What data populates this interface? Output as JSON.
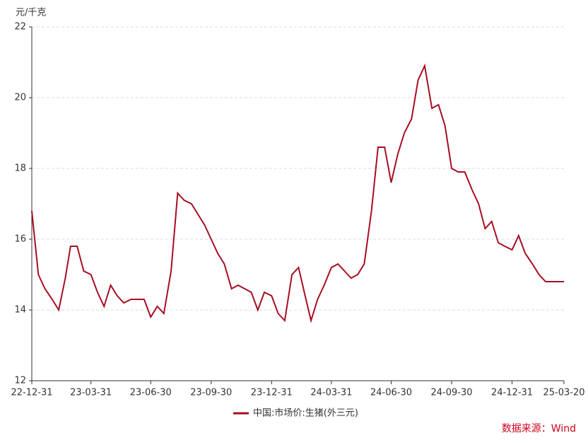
{
  "chart_data": {
    "type": "line",
    "y_unit": "元/千克",
    "source": "数据来源：Wind",
    "x": [
      "22-12-31",
      "23-01-10",
      "23-01-20",
      "23-01-31",
      "23-02-10",
      "23-02-20",
      "23-02-28",
      "23-03-10",
      "23-03-20",
      "23-03-31",
      "23-04-10",
      "23-04-20",
      "23-04-30",
      "23-05-10",
      "23-05-20",
      "23-05-31",
      "23-06-10",
      "23-06-20",
      "23-06-30",
      "23-07-10",
      "23-07-20",
      "23-07-31",
      "23-08-10",
      "23-08-20",
      "23-08-31",
      "23-09-10",
      "23-09-20",
      "23-09-30",
      "23-10-10",
      "23-10-20",
      "23-10-31",
      "23-11-10",
      "23-11-20",
      "23-11-30",
      "23-12-10",
      "23-12-20",
      "23-12-31",
      "24-01-10",
      "24-01-20",
      "24-01-31",
      "24-02-10",
      "24-02-20",
      "24-02-29",
      "24-03-10",
      "24-03-20",
      "24-03-31",
      "24-04-10",
      "24-04-20",
      "24-04-30",
      "24-05-10",
      "24-05-20",
      "24-05-31",
      "24-06-10",
      "24-06-20",
      "24-06-30",
      "24-07-10",
      "24-07-20",
      "24-07-31",
      "24-08-10",
      "24-08-20",
      "24-08-31",
      "24-09-10",
      "24-09-20",
      "24-09-30",
      "24-10-10",
      "24-10-20",
      "24-10-31",
      "24-11-10",
      "24-11-20",
      "24-11-30",
      "24-12-10",
      "24-12-20",
      "24-12-31",
      "25-01-10",
      "25-01-20",
      "25-01-31",
      "25-02-10",
      "25-02-20",
      "25-02-28",
      "25-03-10",
      "25-03-20"
    ],
    "series": [
      {
        "name": "中国:市场价:生猪(外三元)",
        "color": "#a50f22",
        "values": [
          16.8,
          15.0,
          14.6,
          14.3,
          14.0,
          14.9,
          15.8,
          15.8,
          15.1,
          15.0,
          14.5,
          14.1,
          14.7,
          14.4,
          14.2,
          14.3,
          14.3,
          14.3,
          13.8,
          14.1,
          13.9,
          15.1,
          17.3,
          17.1,
          17.0,
          16.7,
          16.4,
          16.0,
          15.6,
          15.3,
          14.6,
          14.7,
          14.6,
          14.5,
          14.0,
          14.5,
          14.4,
          13.9,
          13.7,
          15.0,
          15.2,
          14.4,
          13.7,
          14.3,
          14.7,
          15.2,
          15.3,
          15.1,
          14.9,
          15.0,
          15.3,
          16.8,
          18.6,
          18.6,
          17.6,
          18.4,
          19.0,
          19.4,
          20.5,
          20.9,
          19.7,
          19.8,
          19.2,
          18.0,
          17.9,
          17.9,
          17.4,
          17.0,
          16.3,
          16.5,
          15.9,
          15.8,
          15.7,
          16.1,
          15.6,
          15.3,
          15.0,
          14.8,
          14.8,
          14.8,
          14.8
        ]
      }
    ],
    "xlim": [
      "22-12-31",
      "25-03-20"
    ],
    "xticks": [
      "22-12-31",
      "23-03-31",
      "23-06-30",
      "23-09-30",
      "23-12-31",
      "24-03-31",
      "24-06-30",
      "24-09-30",
      "24-12-31",
      "25-03-20"
    ],
    "ylim": [
      12,
      22
    ],
    "yticks": [
      12,
      14,
      16,
      18,
      20,
      22
    ],
    "grid": true
  }
}
